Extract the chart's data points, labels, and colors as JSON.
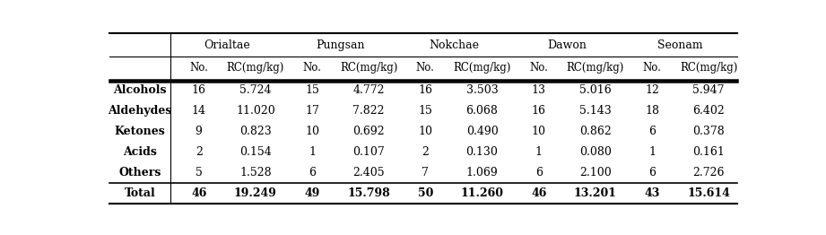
{
  "col_groups": [
    "Orialtae",
    "Pungsan",
    "Nokchae",
    "Dawon",
    "Seonam"
  ],
  "sub_cols": [
    "No.",
    "RC(mg/kg)"
  ],
  "row_labels": [
    "Alcohols",
    "Aldehydes",
    "Ketones",
    "Acids",
    "Others",
    "Total"
  ],
  "row_bold": [
    false,
    false,
    false,
    false,
    false,
    true
  ],
  "data": [
    [
      "16",
      "5.724",
      "15",
      "4.772",
      "16",
      "3.503",
      "13",
      "5.016",
      "12",
      "5.947"
    ],
    [
      "14",
      "11.020",
      "17",
      "7.822",
      "15",
      "6.068",
      "16",
      "5.143",
      "18",
      "6.402"
    ],
    [
      "9",
      "0.823",
      "10",
      "0.692",
      "10",
      "0.490",
      "10",
      "0.862",
      "6",
      "0.378"
    ],
    [
      "2",
      "0.154",
      "1",
      "0.107",
      "2",
      "0.130",
      "1",
      "0.080",
      "1",
      "0.161"
    ],
    [
      "5",
      "1.528",
      "6",
      "2.405",
      "7",
      "1.069",
      "6",
      "2.100",
      "6",
      "2.726"
    ],
    [
      "46",
      "19.249",
      "49",
      "15.798",
      "50",
      "11.260",
      "46",
      "13.201",
      "43",
      "15.614"
    ]
  ],
  "font_family": "serif",
  "fontsize_header": 9,
  "fontsize_data": 9,
  "bg_color": "#ffffff",
  "text_color": "#000000",
  "line_color": "#000000"
}
